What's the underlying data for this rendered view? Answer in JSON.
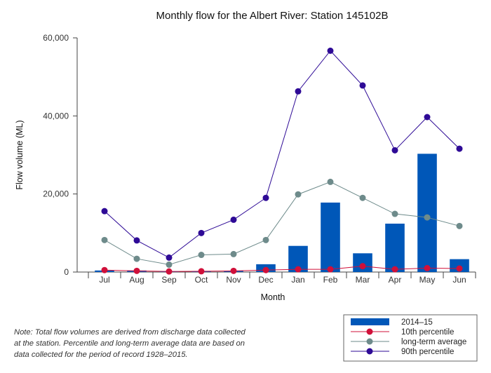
{
  "chart_data": {
    "type": "bar",
    "title": "Monthly flow for the Albert River: Station 145102B",
    "xlabel": "Month",
    "ylabel": "Flow volume (ML)",
    "ylim": [
      0,
      60000
    ],
    "yticks": [
      0,
      20000,
      40000,
      60000
    ],
    "ytick_labels": [
      "0",
      "20,000",
      "40,000",
      "60,000"
    ],
    "grid": false,
    "legend_position": "bottom-right",
    "categories": [
      "Jul",
      "Aug",
      "Sep",
      "Oct",
      "Nov",
      "Dec",
      "Jan",
      "Feb",
      "Mar",
      "Apr",
      "May",
      "Jun"
    ],
    "series": [
      {
        "name": "2014–15",
        "kind": "bar",
        "color": "#0057b8",
        "values": [
          400,
          400,
          100,
          200,
          300,
          2000,
          6700,
          17800,
          4800,
          12400,
          30300,
          3300
        ]
      },
      {
        "name": "10th percentile",
        "kind": "line",
        "color": "#d0103a",
        "values": [
          500,
          300,
          150,
          200,
          300,
          500,
          700,
          700,
          1500,
          700,
          1000,
          900
        ]
      },
      {
        "name": "long-term average",
        "kind": "line",
        "color": "#6e8b8b",
        "values": [
          8200,
          3400,
          1900,
          4400,
          4600,
          8200,
          19900,
          23100,
          19000,
          14900,
          14000,
          11800
        ]
      },
      {
        "name": "90th percentile",
        "kind": "line",
        "color": "#2e0a96",
        "values": [
          15600,
          8100,
          3700,
          10000,
          13400,
          19000,
          46300,
          56700,
          47800,
          31200,
          39700,
          31600
        ]
      }
    ]
  },
  "note": {
    "lines": [
      "Note: Total flow volumes are derived from discharge data collected",
      "at the station. Percentile and long-term average data are based on",
      "data collected for the period of record 1928–2015."
    ]
  }
}
